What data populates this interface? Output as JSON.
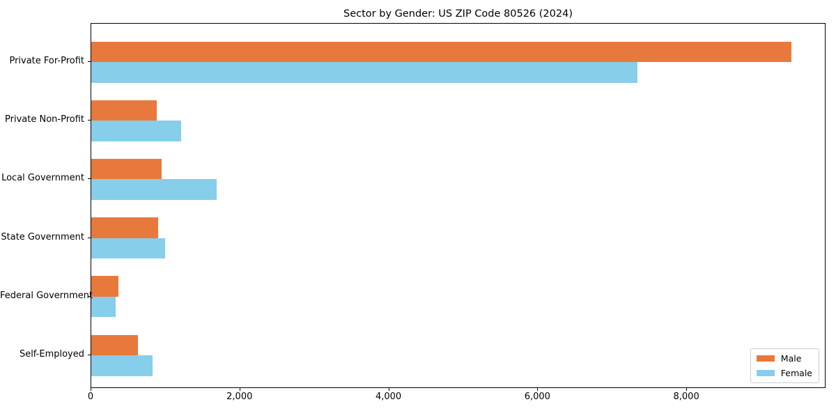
{
  "chart_data": {
    "type": "bar",
    "orientation": "horizontal",
    "title": "Sector by Gender: US ZIP Code 80526 (2024)",
    "categories": [
      "Private For-Profit",
      "Private Non-Profit",
      "Local Government",
      "State Government",
      "Federal Government",
      "Self-Employed"
    ],
    "series": [
      {
        "name": "Male",
        "color": "#e8793c",
        "values": [
          9400,
          880,
          945,
          895,
          365,
          630
        ]
      },
      {
        "name": "Female",
        "color": "#87ceeb",
        "values": [
          7330,
          1210,
          1680,
          990,
          330,
          825
        ]
      }
    ],
    "xlabel": "",
    "ylabel": "",
    "xlim": [
      0,
      9870
    ],
    "xticks": [
      0,
      2000,
      4000,
      6000,
      8000
    ],
    "xtick_labels": [
      "0",
      "2,000",
      "4,000",
      "6,000",
      "8,000"
    ],
    "grid": false,
    "legend_position": "lower right",
    "background_color": "#ffffff",
    "spine_color": "#000000"
  }
}
